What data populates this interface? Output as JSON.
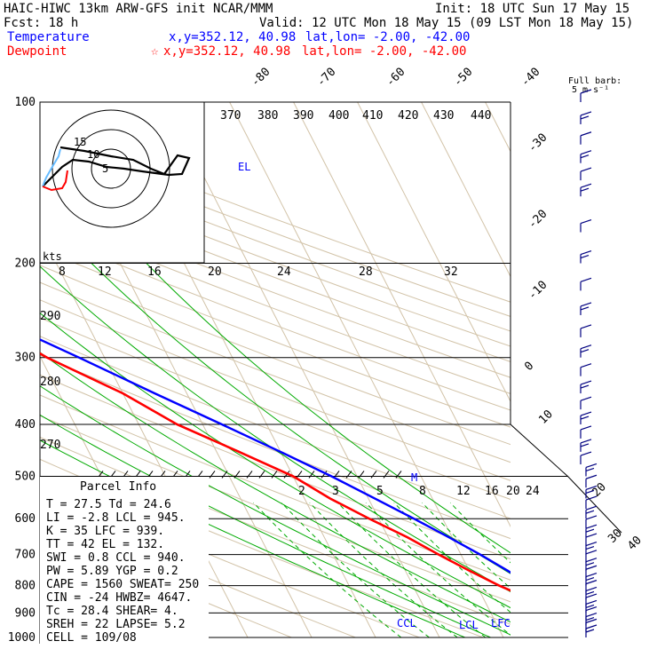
{
  "header": {
    "title": "HAIC-HIWC 13km ARW-GFS init   NCAR/MMM",
    "init": "Init: 18 UTC Sun 17 May 15",
    "fcst": "Fcst:   18 h",
    "valid": "Valid: 12 UTC Mon 18 May 15 (09 LST Mon 18 May 15)",
    "temp_label": "Temperature",
    "temp_xy": "x,y=352.12, 40.98",
    "temp_latlon": "lat,lon= -2.00, -42.00",
    "dew_label": "Dewpoint",
    "dew_star": "☆",
    "dew_xy": "x,y=352.12, 40.98",
    "dew_latlon": "lat,lon= -2.00, -42.00"
  },
  "colors": {
    "temperature": "#ff0000",
    "dewpoint": "#ff0000",
    "temp_text": "#0000ff",
    "parcel": "#0000ff",
    "isotherm": "#d2c3a8",
    "adiabat": "#d2c3a8",
    "moist": "#00aa00",
    "mixing": "#00aa00",
    "barb": "#000080"
  },
  "barb_legend": {
    "line1": "Full barb:",
    "line2": "5 m s⁻¹"
  },
  "hodograph": {
    "units": "kts",
    "ring_labels": [
      "5",
      "10",
      "15"
    ]
  },
  "parcel_info": {
    "title": "Parcel  Info",
    "rows": [
      "T   =    27.5  Td =  24.6",
      "LI  =    -2.8  LCL =  945.",
      "K   =      35  LFC =  939.",
      "TT  =      42  EL  =  132.",
      "SWI =     0.8  CCL =  940.",
      "PW  =    5.89  YGP =   0.2",
      "CAPE =   1560  SWEAT=  250",
      "CIN  =    -24  HWBZ= 4647.",
      "Tc  =    28.4  SHEAR=   4.",
      "SREH =     22  LAPSE=  5.2",
      "CELL = 109/08"
    ]
  },
  "level_markers": {
    "el": "EL",
    "m": "M",
    "ccl": "CCL",
    "lcl": "LCL",
    "lfc": "LFC"
  },
  "chart_data": {
    "type": "line",
    "title": "Skew-T log-P sounding",
    "pressure_ticks": [
      100,
      200,
      300,
      400,
      500,
      600,
      700,
      800,
      900,
      1000
    ],
    "pressure_tick_labels": [
      "100",
      "200",
      "300",
      "400",
      "500",
      "600",
      "700",
      "800",
      "900",
      "1000"
    ],
    "isotherm_labels": [
      "-80",
      "-70",
      "-60",
      "-50",
      "-40",
      "-30",
      "-20",
      "-10",
      "0",
      "10",
      "20",
      "30",
      "40"
    ],
    "theta_labels": [
      "370",
      "380",
      "390",
      "400",
      "410",
      "420",
      "430",
      "440",
      "290",
      "280",
      "270"
    ],
    "theta_e_labels": [
      "8",
      "12",
      "16",
      "20",
      "24",
      "28",
      "32"
    ],
    "mixing_labels": [
      "2",
      "3",
      "5",
      "8",
      "12",
      "16",
      "20",
      "24"
    ],
    "series": [
      {
        "name": "Temperature",
        "points": [
          [
            1000,
            27.5
          ],
          [
            975,
            26
          ],
          [
            950,
            24
          ],
          [
            925,
            22
          ],
          [
            900,
            20.5
          ],
          [
            850,
            17.5
          ],
          [
            800,
            13.5
          ],
          [
            750,
            10
          ],
          [
            700,
            6.5
          ],
          [
            650,
            3
          ],
          [
            600,
            -1.5
          ],
          [
            550,
            -6
          ],
          [
            500,
            -10
          ],
          [
            450,
            -16.5
          ],
          [
            400,
            -24
          ],
          [
            350,
            -30
          ],
          [
            300,
            -39
          ],
          [
            250,
            -47
          ],
          [
            200,
            -55
          ],
          [
            175,
            -60
          ],
          [
            150,
            -65
          ],
          [
            140,
            -72
          ],
          [
            130,
            -80
          ],
          [
            120,
            -86
          ],
          [
            110,
            -83
          ],
          [
            100,
            -76
          ]
        ]
      },
      {
        "name": "Dewpoint",
        "points": [
          [
            1000,
            24.6
          ],
          [
            975,
            23.5
          ],
          [
            950,
            22.6
          ],
          [
            925,
            21.8
          ],
          [
            900,
            20.5
          ],
          [
            850,
            17.5
          ],
          [
            800,
            13.5
          ],
          [
            750,
            10
          ],
          [
            700,
            6.5
          ],
          [
            650,
            3
          ],
          [
            600,
            -1.5
          ],
          [
            550,
            -6
          ],
          [
            500,
            -10
          ],
          [
            450,
            -16.5
          ],
          [
            400,
            -24
          ],
          [
            350,
            -30
          ],
          [
            300,
            -39
          ],
          [
            250,
            -47
          ],
          [
            200,
            -55
          ],
          [
            175,
            -60
          ],
          [
            150,
            -65
          ],
          [
            140,
            -72
          ],
          [
            130,
            -80
          ],
          [
            120,
            -86
          ],
          [
            110,
            -83
          ],
          [
            100,
            -76
          ]
        ]
      },
      {
        "name": "Parcel",
        "points": [
          [
            1000,
            28.4
          ],
          [
            975,
            26.5
          ],
          [
            950,
            25
          ],
          [
            940,
            24.4
          ],
          [
            900,
            23
          ],
          [
            850,
            21
          ],
          [
            800,
            18.5
          ],
          [
            750,
            16
          ],
          [
            700,
            13
          ],
          [
            650,
            9.5
          ],
          [
            600,
            5.5
          ],
          [
            550,
            1
          ],
          [
            500,
            -4
          ],
          [
            450,
            -10
          ],
          [
            400,
            -17
          ],
          [
            350,
            -25
          ],
          [
            300,
            -34
          ],
          [
            250,
            -45
          ],
          [
            200,
            -57
          ],
          [
            175,
            -64
          ],
          [
            150,
            -72
          ],
          [
            132,
            -79
          ],
          [
            120,
            -87
          ],
          [
            110,
            -92
          ],
          [
            100,
            -97
          ]
        ]
      }
    ],
    "wind_levels_hpa": [
      1000,
      975,
      950,
      925,
      900,
      875,
      850,
      825,
      800,
      775,
      750,
      725,
      700,
      675,
      650,
      625,
      600,
      575,
      550,
      525,
      500,
      475,
      450,
      425,
      400,
      375,
      350,
      325,
      300,
      275,
      250,
      225,
      200,
      175,
      150,
      140,
      130,
      120,
      110,
      100
    ]
  }
}
